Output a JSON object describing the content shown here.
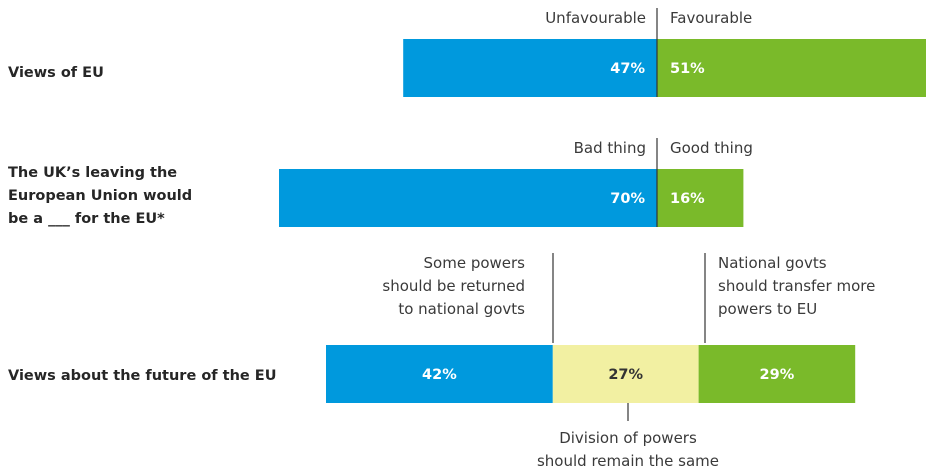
{
  "colors": {
    "unfavourable": "#0099dd",
    "favourable": "#7aba2a",
    "neutral": "#f2f0a2",
    "text_on_dark": "#ffffff",
    "text_on_light": "#333333"
  },
  "chart_data": {
    "type": "bar",
    "orientation": "horizontal",
    "stacked": true,
    "axis_units": "percent",
    "rows": [
      {
        "label": "Views of EU",
        "segments": [
          {
            "name": "Unfavourable",
            "value": 47
          },
          {
            "name": "Favourable",
            "value": 51
          }
        ],
        "value_labels": [
          "47%",
          "51%"
        ],
        "header_left": "Unfavourable",
        "header_right": "Favourable"
      },
      {
        "label": "The UK’s leaving the European Union would be a ___  for the EU*",
        "label_lines": [
          "The UK’s leaving the",
          "European Union would",
          "be a ___  for the EU*"
        ],
        "segments": [
          {
            "name": "Bad thing",
            "value": 70
          },
          {
            "name": "Good thing",
            "value": 16
          }
        ],
        "value_labels": [
          "70%",
          "16%"
        ],
        "header_left": "Bad thing",
        "header_right": "Good thing"
      },
      {
        "label": "Views about the future of the EU",
        "segments": [
          {
            "name": "Some powers should be returned to national govts",
            "value": 42
          },
          {
            "name": "Division of powers should remain the same",
            "value": 27
          },
          {
            "name": "National govts should transfer more powers to EU",
            "value": 29
          }
        ],
        "value_labels": [
          "42%",
          "27%",
          "29%"
        ],
        "annotations": {
          "left": [
            "Some powers",
            "should be returned",
            "to national govts"
          ],
          "middle": [
            "Division of powers",
            "should remain the same"
          ],
          "right": [
            "National govts",
            "should transfer more",
            "powers to EU"
          ]
        }
      }
    ]
  }
}
